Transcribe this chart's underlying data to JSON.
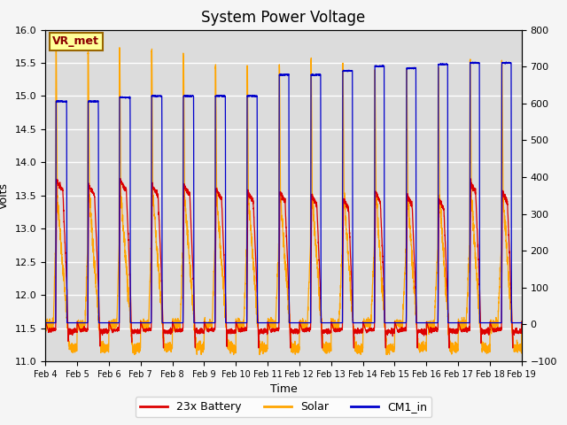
{
  "title": "System Power Voltage",
  "xlabel": "Time",
  "ylabel": "Volts",
  "ylim_left": [
    11.0,
    16.0
  ],
  "ylim_right": [
    -100,
    800
  ],
  "yticks_left": [
    11.0,
    11.5,
    12.0,
    12.5,
    13.0,
    13.5,
    14.0,
    14.5,
    15.0,
    15.5,
    16.0
  ],
  "yticks_right": [
    -100,
    0,
    100,
    200,
    300,
    400,
    500,
    600,
    700,
    800
  ],
  "n_days": 15,
  "date_start": 4,
  "points_per_day": 288,
  "background_color": "#dcdcdc",
  "fig_facecolor": "#f5f5f5",
  "battery_color": "#dd0000",
  "solar_color": "#ffa500",
  "cm1_color": "#0000cc",
  "legend_labels": [
    "23x Battery",
    "Solar",
    "CM1_in"
  ],
  "vr_met_label": "VR_met",
  "vr_met_box_color": "#ffff99",
  "vr_met_text_color": "#8b0000",
  "title_fontsize": 12,
  "axis_fontsize": 9,
  "tick_fontsize": 8,
  "legend_fontsize": 9
}
